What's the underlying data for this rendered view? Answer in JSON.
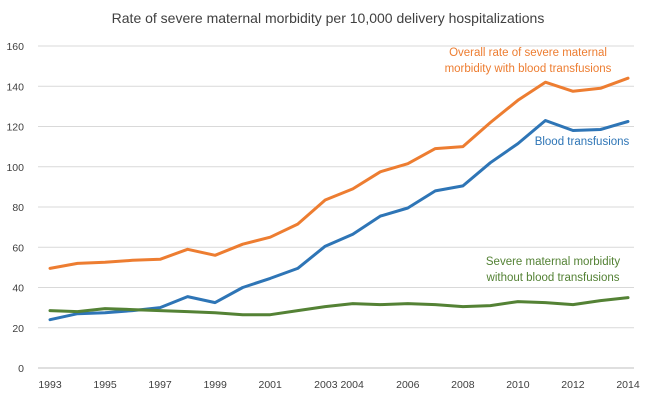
{
  "chart_data": {
    "type": "line",
    "title": "Rate of severe maternal morbidity  per 10,000 delivery hospitalizations",
    "xlabel": "",
    "ylabel": "",
    "ylim": [
      0,
      160
    ],
    "yticks": [
      0,
      20,
      40,
      60,
      80,
      100,
      120,
      140,
      160
    ],
    "x": [
      1993,
      1994,
      1995,
      1996,
      1997,
      1998,
      1999,
      2000,
      2001,
      2002,
      2003,
      2004,
      2005,
      2006,
      2007,
      2008,
      2009,
      2010,
      2011,
      2012,
      2013,
      2014
    ],
    "xtick_labels": [
      {
        "year": 1993,
        "label": "1993"
      },
      {
        "year": 1995,
        "label": "1995"
      },
      {
        "year": 1997,
        "label": "1997"
      },
      {
        "year": 1999,
        "label": "1999"
      },
      {
        "year": 2001,
        "label": "2001"
      },
      {
        "year": 2003.5,
        "label": "2003 2004"
      },
      {
        "year": 2006,
        "label": "2006"
      },
      {
        "year": 2008,
        "label": "2008"
      },
      {
        "year": 2010,
        "label": "2010"
      },
      {
        "year": 2012,
        "label": "2012"
      },
      {
        "year": 2014,
        "label": "2014"
      }
    ],
    "grid": true,
    "series": [
      {
        "name": "Overall rate of severe maternal morbidity with blood transfusions",
        "color": "#ed7d31",
        "values": [
          49.5,
          52,
          52.5,
          53.5,
          54,
          59,
          56,
          61.5,
          65,
          71.5,
          83.5,
          89,
          97.5,
          101.5,
          109,
          110,
          122,
          133,
          142,
          137.5,
          139,
          144
        ]
      },
      {
        "name": "Blood transfusions",
        "color": "#2e75b6",
        "values": [
          24,
          27,
          27.5,
          28.5,
          30,
          35.5,
          32.5,
          40,
          44.5,
          49.5,
          60.5,
          66.5,
          75.5,
          79.5,
          88,
          90.5,
          102,
          111.5,
          123,
          118,
          118.5,
          122.5
        ]
      },
      {
        "name": "Severe maternal morbidity without blood transfusions",
        "color": "#548235",
        "values": [
          28.5,
          28,
          29.5,
          29,
          28.5,
          28,
          27.5,
          26.5,
          26.5,
          28.5,
          30.5,
          32,
          31.5,
          32,
          31.5,
          30.5,
          31,
          33,
          32.5,
          31.5,
          33.5,
          35
        ]
      }
    ],
    "annotations": [
      {
        "series": 0,
        "lines": [
          "Overall rate of severe maternal",
          "morbidity with blood transfusions"
        ],
        "color": "#ed7d31"
      },
      {
        "series": 1,
        "lines": [
          "Blood transfusions"
        ],
        "color": "#2e75b6"
      },
      {
        "series": 2,
        "lines": [
          "Severe  maternal morbidity",
          "without blood transfusions"
        ],
        "color": "#548235"
      }
    ]
  }
}
